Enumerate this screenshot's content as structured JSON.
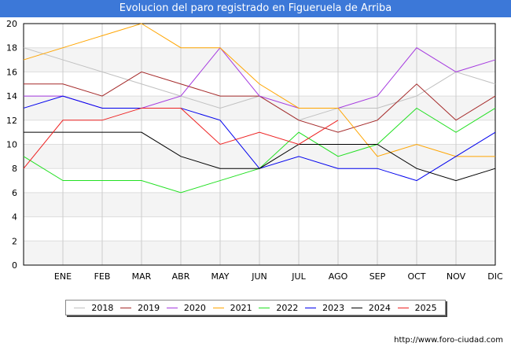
{
  "header": {
    "title": "Evolucion del paro registrado en Figueruela de Arriba"
  },
  "footer": {
    "url": "http://www.foro-ciudad.com"
  },
  "chart_data": {
    "type": "line",
    "categories": [
      "",
      "ENE",
      "FEB",
      "MAR",
      "ABR",
      "MAY",
      "JUN",
      "JUL",
      "AGO",
      "SEP",
      "OCT",
      "NOV",
      "DIC"
    ],
    "ylim": [
      0,
      20
    ],
    "yticks": [
      0,
      2,
      4,
      6,
      8,
      10,
      12,
      14,
      16,
      18,
      20
    ],
    "grid": true,
    "legend": "bottom",
    "series": [
      {
        "name": "2018",
        "color": "#c0c0c0",
        "values": [
          18,
          17,
          16,
          15,
          14,
          13,
          14,
          12,
          13,
          13,
          14,
          16,
          15
        ]
      },
      {
        "name": "2019",
        "color": "#a52a2a",
        "values": [
          15,
          15,
          14,
          16,
          15,
          14,
          14,
          12,
          11,
          12,
          15,
          12,
          14
        ]
      },
      {
        "name": "2020",
        "color": "#a53adf",
        "values": [
          14,
          14,
          13,
          13,
          14,
          18,
          14,
          13,
          13,
          14,
          18,
          16,
          17
        ]
      },
      {
        "name": "2021",
        "color": "#ffa500",
        "values": [
          17,
          18,
          19,
          20,
          18,
          18,
          15,
          13,
          13,
          9,
          10,
          9,
          9
        ]
      },
      {
        "name": "2022",
        "color": "#22e022",
        "values": [
          9,
          7,
          7,
          7,
          6,
          7,
          8,
          11,
          9,
          10,
          13,
          11,
          13
        ]
      },
      {
        "name": "2023",
        "color": "#0000ee",
        "values": [
          13,
          14,
          13,
          13,
          13,
          12,
          8,
          9,
          8,
          8,
          7,
          9,
          11
        ]
      },
      {
        "name": "2024",
        "color": "#000000",
        "values": [
          11,
          11,
          11,
          11,
          9,
          8,
          8,
          10,
          10,
          10,
          8,
          7,
          8
        ]
      },
      {
        "name": "2025",
        "color": "#ee2222",
        "values": [
          8,
          12,
          12,
          13,
          13,
          10,
          11,
          10,
          12,
          null,
          null,
          null,
          null
        ]
      }
    ]
  }
}
